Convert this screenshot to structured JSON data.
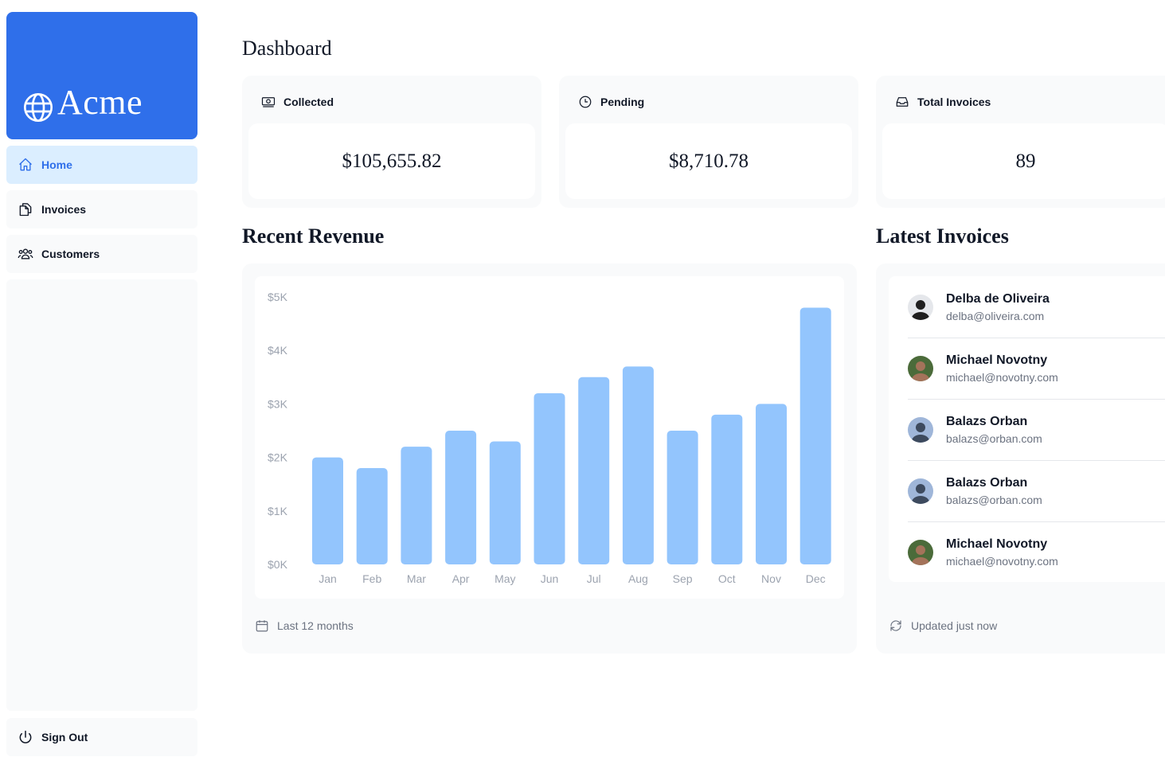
{
  "brand": {
    "name": "Acme",
    "icon": "globe-icon"
  },
  "nav": {
    "items": [
      {
        "label": "Home",
        "icon": "home-icon",
        "active": true
      },
      {
        "label": "Invoices",
        "icon": "document-duplicate-icon",
        "active": false
      },
      {
        "label": "Customers",
        "icon": "user-group-icon",
        "active": false
      }
    ],
    "sign_out": {
      "label": "Sign Out",
      "icon": "power-icon"
    }
  },
  "page": {
    "title": "Dashboard"
  },
  "cards": [
    {
      "title": "Collected",
      "icon": "banknotes-icon",
      "value": "$105,655.82"
    },
    {
      "title": "Pending",
      "icon": "clock-icon",
      "value": "$8,710.78"
    },
    {
      "title": "Total Invoices",
      "icon": "inbox-icon",
      "value": "89"
    }
  ],
  "revenue": {
    "title": "Recent Revenue",
    "footer": "Last 12 months",
    "footer_icon": "calendar-icon"
  },
  "chart_data": {
    "type": "bar",
    "title": "",
    "xlabel": "",
    "ylabel": "",
    "categories": [
      "Jan",
      "Feb",
      "Mar",
      "Apr",
      "May",
      "Jun",
      "Jul",
      "Aug",
      "Sep",
      "Oct",
      "Nov",
      "Dec"
    ],
    "values": [
      2000,
      1800,
      2200,
      2500,
      2300,
      3200,
      3500,
      3700,
      2500,
      2800,
      3000,
      4800
    ],
    "yticks": [
      "$0K",
      "$1K",
      "$2K",
      "$3K",
      "$4K",
      "$5K"
    ],
    "ylim": [
      0,
      5000
    ],
    "grid": false,
    "bar_color": "#93c5fd"
  },
  "latest": {
    "title": "Latest Invoices",
    "footer": "Updated just now",
    "footer_icon": "refresh-icon",
    "items": [
      {
        "name": "Delba de Oliveira",
        "email": "delba@oliveira.com",
        "avatar_bg": "#e5e7eb",
        "avatar_fg": "#1f1f1f"
      },
      {
        "name": "Michael Novotny",
        "email": "michael@novotny.com",
        "avatar_bg": "#4b6b3a",
        "avatar_fg": "#a4735a"
      },
      {
        "name": "Balazs Orban",
        "email": "balazs@orban.com",
        "avatar_bg": "#9fb6d9",
        "avatar_fg": "#3d4a5e"
      },
      {
        "name": "Balazs Orban",
        "email": "balazs@orban.com",
        "avatar_bg": "#9fb6d9",
        "avatar_fg": "#3d4a5e"
      },
      {
        "name": "Michael Novotny",
        "email": "michael@novotny.com",
        "avatar_bg": "#4b6b3a",
        "avatar_fg": "#a4735a"
      }
    ]
  },
  "colors": {
    "brand": "#2f6fea",
    "active_nav_bg": "#dbeeff",
    "panel_bg": "#f9fafb"
  }
}
